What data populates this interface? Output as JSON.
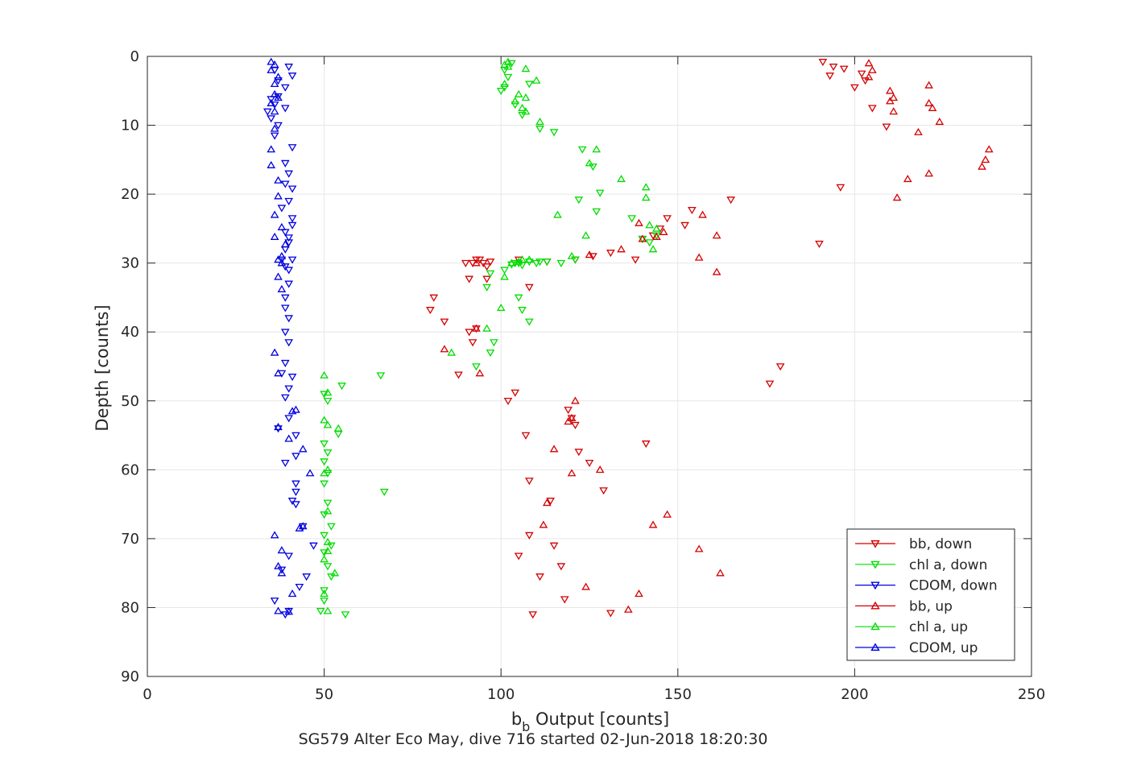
{
  "chart_data": {
    "type": "scatter",
    "xlabel_main": "b",
    "xlabel_sub": "b",
    "xlabel_rest": " Output [counts]",
    "ylabel": "Depth [counts]",
    "caption": "SG579 Alter Eco May, dive 716 started 02-Jun-2018 18:20:30",
    "xlim": [
      0,
      250
    ],
    "ylim": [
      0,
      90
    ],
    "y_reversed": true,
    "grid": true,
    "legend_position": "bottom-right",
    "x_ticks": [
      0,
      50,
      100,
      150,
      200,
      250
    ],
    "y_ticks": [
      0,
      10,
      20,
      30,
      40,
      50,
      60,
      70,
      80,
      90
    ],
    "series": [
      {
        "name": "bb, down",
        "color": "#d40000",
        "marker": "triangle-down",
        "legend_order": 0,
        "points": [
          [
            191,
            0.8
          ],
          [
            194,
            1.5
          ],
          [
            197,
            1.8
          ],
          [
            193,
            2.8
          ],
          [
            202,
            2.5
          ],
          [
            203,
            3.5
          ],
          [
            200,
            4.5
          ],
          [
            205,
            7.5
          ],
          [
            209,
            10.2
          ],
          [
            196,
            19
          ],
          [
            190,
            27.2
          ],
          [
            165,
            20.8
          ],
          [
            154,
            22.3
          ],
          [
            152,
            24.5
          ],
          [
            147,
            23.5
          ],
          [
            145,
            25
          ],
          [
            143,
            26
          ],
          [
            140,
            26.5
          ],
          [
            138,
            29.5
          ],
          [
            131,
            28.5
          ],
          [
            126,
            29
          ],
          [
            121,
            29.5
          ],
          [
            113,
            29.8
          ],
          [
            105,
            29.5
          ],
          [
            97,
            29.8
          ],
          [
            95,
            30
          ],
          [
            94,
            29.5
          ],
          [
            93,
            29.5
          ],
          [
            92,
            30
          ],
          [
            90,
            30
          ],
          [
            96,
            30.5
          ],
          [
            96,
            32.3
          ],
          [
            91,
            32.3
          ],
          [
            108,
            33.5
          ],
          [
            81,
            35
          ],
          [
            80,
            36.8
          ],
          [
            84,
            38.5
          ],
          [
            91,
            40
          ],
          [
            92,
            41.5
          ],
          [
            88,
            46.2
          ],
          [
            93,
            39.5
          ],
          [
            179,
            45
          ],
          [
            176,
            47.5
          ],
          [
            104,
            48.8
          ],
          [
            102,
            50
          ],
          [
            119,
            51.3
          ],
          [
            120,
            52.5
          ],
          [
            121,
            53.5
          ],
          [
            107,
            55
          ],
          [
            141,
            56.2
          ],
          [
            122,
            57.4
          ],
          [
            125,
            59
          ],
          [
            129,
            63
          ],
          [
            108,
            61.6
          ],
          [
            114,
            64.5
          ],
          [
            108,
            69.5
          ],
          [
            115,
            71
          ],
          [
            105,
            72.5
          ],
          [
            117,
            74
          ],
          [
            111,
            75.5
          ],
          [
            118,
            78.8
          ],
          [
            131,
            80.8
          ],
          [
            109,
            81
          ]
        ]
      },
      {
        "name": "chl a, down",
        "color": "#00dd00",
        "marker": "triangle-down",
        "legend_order": 1,
        "points": [
          [
            103,
            1
          ],
          [
            101,
            2
          ],
          [
            102,
            3
          ],
          [
            101,
            4.5
          ],
          [
            100,
            5
          ],
          [
            108,
            4
          ],
          [
            104,
            7
          ],
          [
            106,
            8.5
          ],
          [
            111,
            10.5
          ],
          [
            115,
            11
          ],
          [
            123,
            13.5
          ],
          [
            126,
            16
          ],
          [
            128,
            19.8
          ],
          [
            122,
            20.8
          ],
          [
            127,
            22.5
          ],
          [
            137,
            23.5
          ],
          [
            140,
            26.5
          ],
          [
            142,
            27
          ],
          [
            144,
            26
          ],
          [
            121,
            29.5
          ],
          [
            117,
            30
          ],
          [
            113,
            29.8
          ],
          [
            111,
            29.8
          ],
          [
            110,
            30
          ],
          [
            108,
            29.8
          ],
          [
            106,
            30.3
          ],
          [
            105,
            30
          ],
          [
            104,
            30
          ],
          [
            103,
            30.2
          ],
          [
            101,
            31
          ],
          [
            97,
            31.5
          ],
          [
            96,
            33.5
          ],
          [
            105,
            35
          ],
          [
            106,
            36.8
          ],
          [
            108,
            38.5
          ],
          [
            98,
            41.5
          ],
          [
            97,
            43
          ],
          [
            93,
            45
          ],
          [
            66,
            46.3
          ],
          [
            55,
            47.8
          ],
          [
            50,
            49
          ],
          [
            51,
            50
          ],
          [
            54,
            54.8
          ],
          [
            50,
            56.2
          ],
          [
            51,
            57.5
          ],
          [
            50,
            58.8
          ],
          [
            51,
            60.5
          ],
          [
            50,
            62
          ],
          [
            67,
            63.2
          ],
          [
            51,
            64.8
          ],
          [
            50,
            66.5
          ],
          [
            52,
            68.2
          ],
          [
            50,
            69.5
          ],
          [
            52,
            71
          ],
          [
            50,
            72
          ],
          [
            51,
            74
          ],
          [
            52,
            75.5
          ],
          [
            50,
            77.5
          ],
          [
            50,
            79
          ],
          [
            49,
            80.5
          ],
          [
            56,
            81
          ]
        ]
      },
      {
        "name": "CDOM, down",
        "color": "#0000e0",
        "marker": "triangle-down",
        "legend_order": 2,
        "points": [
          [
            40,
            1.5
          ],
          [
            36,
            2
          ],
          [
            41,
            2.8
          ],
          [
            37,
            3.5
          ],
          [
            39,
            4.5
          ],
          [
            37,
            5.8
          ],
          [
            35,
            6.2
          ],
          [
            36,
            7
          ],
          [
            39,
            7.5
          ],
          [
            34,
            8
          ],
          [
            35,
            9
          ],
          [
            37,
            10
          ],
          [
            36,
            11.5
          ],
          [
            41,
            13.2
          ],
          [
            39,
            15.5
          ],
          [
            40,
            17
          ],
          [
            39,
            18.5
          ],
          [
            41,
            19.2
          ],
          [
            40,
            21
          ],
          [
            38,
            22
          ],
          [
            41,
            23.5
          ],
          [
            41,
            24.5
          ],
          [
            39,
            25.5
          ],
          [
            40,
            26.3
          ],
          [
            40,
            27
          ],
          [
            39,
            28
          ],
          [
            41,
            29.5
          ],
          [
            38,
            29.5
          ],
          [
            39,
            30.5
          ],
          [
            40,
            31
          ],
          [
            40,
            33
          ],
          [
            39,
            35
          ],
          [
            39,
            36.5
          ],
          [
            40,
            38
          ],
          [
            39,
            40
          ],
          [
            40,
            41.5
          ],
          [
            39,
            44.5
          ],
          [
            38,
            46
          ],
          [
            41,
            46.5
          ],
          [
            40,
            48.2
          ],
          [
            39,
            49.5
          ],
          [
            37,
            54
          ],
          [
            40,
            52.5
          ],
          [
            42,
            55
          ],
          [
            42,
            58
          ],
          [
            39,
            59
          ],
          [
            42,
            62
          ],
          [
            42,
            63.2
          ],
          [
            41,
            64.5
          ],
          [
            42,
            65
          ],
          [
            44,
            68.2
          ],
          [
            47,
            71
          ],
          [
            40,
            72.5
          ],
          [
            38,
            74.5
          ],
          [
            45,
            75.5
          ],
          [
            43,
            77
          ],
          [
            36,
            79
          ],
          [
            40,
            80.5
          ],
          [
            39,
            81
          ]
        ]
      },
      {
        "name": "bb, up",
        "color": "#d40000",
        "marker": "triangle-up",
        "legend_order": 3,
        "points": [
          [
            204,
            1
          ],
          [
            205,
            2
          ],
          [
            204,
            3
          ],
          [
            210,
            5
          ],
          [
            211,
            6
          ],
          [
            210,
            6.5
          ],
          [
            221,
            4.2
          ],
          [
            221,
            6.8
          ],
          [
            222,
            7.5
          ],
          [
            211,
            8
          ],
          [
            224,
            9.5
          ],
          [
            218,
            11
          ],
          [
            238,
            13.5
          ],
          [
            237,
            15
          ],
          [
            236,
            16
          ],
          [
            221,
            17
          ],
          [
            215,
            17.8
          ],
          [
            212,
            20.5
          ],
          [
            157,
            23
          ],
          [
            161,
            26
          ],
          [
            156,
            29.2
          ],
          [
            161,
            31.3
          ],
          [
            146,
            25.5
          ],
          [
            144,
            26.2
          ],
          [
            140,
            26.5
          ],
          [
            139,
            24.2
          ],
          [
            134,
            28
          ],
          [
            125,
            28.8
          ],
          [
            120,
            52.5
          ],
          [
            121,
            50
          ],
          [
            119,
            53
          ],
          [
            115,
            57
          ],
          [
            120,
            60.5
          ],
          [
            128,
            60
          ],
          [
            113,
            64.8
          ],
          [
            112,
            68
          ],
          [
            147,
            66.5
          ],
          [
            143,
            68
          ],
          [
            156,
            71.5
          ],
          [
            162,
            75
          ],
          [
            124,
            77
          ],
          [
            139,
            78
          ],
          [
            136,
            80.3
          ],
          [
            84,
            42.5
          ],
          [
            93,
            39.5
          ],
          [
            94,
            46
          ],
          [
            93,
            30
          ]
        ]
      },
      {
        "name": "chl a, up",
        "color": "#00dd00",
        "marker": "triangle-up",
        "legend_order": 4,
        "points": [
          [
            102,
            0.8
          ],
          [
            101,
            1.2
          ],
          [
            102,
            1.5
          ],
          [
            107,
            1.8
          ],
          [
            110,
            3.5
          ],
          [
            101,
            4
          ],
          [
            105,
            5.5
          ],
          [
            107,
            6
          ],
          [
            104,
            6.5
          ],
          [
            106,
            7.5
          ],
          [
            107,
            8
          ],
          [
            111,
            9.5
          ],
          [
            127,
            13.5
          ],
          [
            125,
            15.5
          ],
          [
            134,
            17.8
          ],
          [
            141,
            19
          ],
          [
            141,
            20.5
          ],
          [
            116,
            23
          ],
          [
            124,
            26
          ],
          [
            143,
            28
          ],
          [
            142,
            24.5
          ],
          [
            144,
            25
          ],
          [
            120,
            29
          ],
          [
            108,
            29.5
          ],
          [
            106,
            29.5
          ],
          [
            105,
            29.8
          ],
          [
            103,
            30
          ],
          [
            101,
            32
          ],
          [
            100,
            36.5
          ],
          [
            96,
            39.5
          ],
          [
            86,
            43
          ],
          [
            50,
            46.3
          ],
          [
            51,
            48.8
          ],
          [
            50,
            52.8
          ],
          [
            51,
            53.5
          ],
          [
            54,
            54
          ],
          [
            51,
            60
          ],
          [
            50,
            60.5
          ],
          [
            51,
            66
          ],
          [
            51,
            70.5
          ],
          [
            51,
            71.8
          ],
          [
            50,
            73
          ],
          [
            53,
            75
          ],
          [
            50,
            78
          ],
          [
            51,
            80.5
          ]
        ]
      },
      {
        "name": "CDOM, up",
        "color": "#0000e0",
        "marker": "triangle-up",
        "legend_order": 5,
        "points": [
          [
            35,
            0.8
          ],
          [
            36,
            1.2
          ],
          [
            35,
            2
          ],
          [
            37,
            3
          ],
          [
            36,
            4
          ],
          [
            36,
            5.5
          ],
          [
            37,
            6
          ],
          [
            35,
            6.8
          ],
          [
            36,
            8
          ],
          [
            36,
            10.5
          ],
          [
            35,
            13.5
          ],
          [
            35,
            15.8
          ],
          [
            37,
            18
          ],
          [
            37,
            20.3
          ],
          [
            36,
            23
          ],
          [
            38,
            24.8
          ],
          [
            36,
            26.2
          ],
          [
            39,
            27.3
          ],
          [
            38,
            29
          ],
          [
            37,
            29.5
          ],
          [
            38,
            30
          ],
          [
            37,
            32
          ],
          [
            38,
            33.8
          ],
          [
            36,
            43
          ],
          [
            37,
            46
          ],
          [
            41,
            51.5
          ],
          [
            42,
            51.3
          ],
          [
            37,
            53.8
          ],
          [
            40,
            55.5
          ],
          [
            44,
            57
          ],
          [
            46,
            60.5
          ],
          [
            44,
            68.2
          ],
          [
            43,
            68.5
          ],
          [
            36,
            69.5
          ],
          [
            38,
            71.7
          ],
          [
            37,
            74
          ],
          [
            38,
            75
          ],
          [
            41,
            78
          ],
          [
            37,
            80.5
          ],
          [
            40,
            80.6
          ]
        ]
      }
    ]
  }
}
